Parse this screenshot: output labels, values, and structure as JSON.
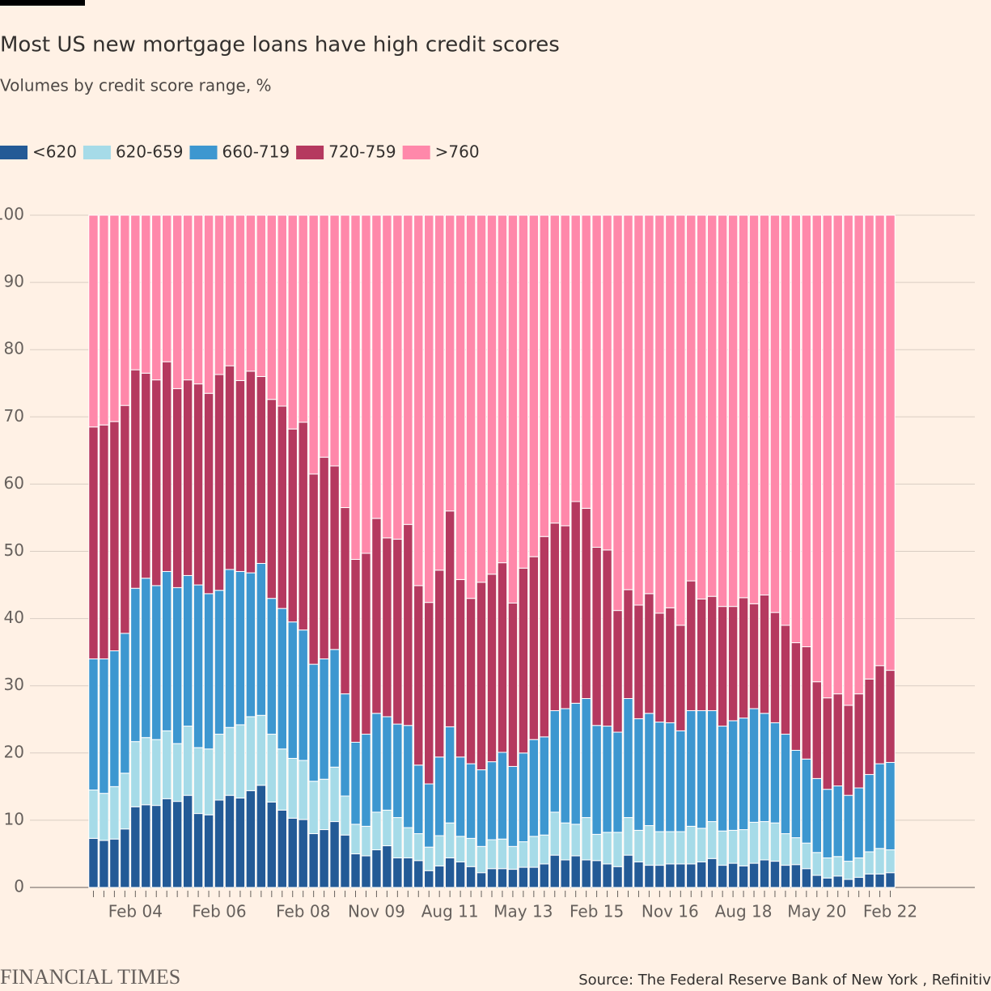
{
  "chart_data": {
    "type": "stacked-bar",
    "title": "Most US new mortgage loans have high credit scores",
    "subtitle": "Volumes by credit score range, %",
    "source": "Source: The Federal Reserve Bank of New York , Refinitiv",
    "brand": "FINANCIAL TIMES",
    "categories": [
      null,
      null,
      null,
      null,
      "Feb 04",
      null,
      null,
      null,
      null,
      null,
      null,
      null,
      "Feb 06",
      null,
      null,
      null,
      null,
      null,
      null,
      null,
      "Feb 08",
      null,
      null,
      null,
      null,
      null,
      null,
      "Nov 09",
      null,
      null,
      null,
      null,
      null,
      null,
      "Aug 11",
      null,
      null,
      null,
      null,
      null,
      null,
      "May 13",
      null,
      null,
      null,
      null,
      null,
      null,
      "Feb 15",
      null,
      null,
      null,
      null,
      null,
      null,
      "Nov 16",
      null,
      null,
      null,
      null,
      null,
      null,
      "Aug 18",
      null,
      null,
      null,
      null,
      null,
      null,
      "May 20",
      null,
      null,
      null,
      null,
      null,
      null,
      "Feb 22"
    ],
    "series": [
      {
        "name": "<620",
        "color": "#235a96",
        "values": [
          7.3,
          7,
          7.2,
          8.7,
          12,
          12.3,
          12.2,
          13.2,
          12.8,
          13.7,
          11,
          10.8,
          13,
          13.7,
          13.3,
          14.4,
          15.2,
          12.7,
          11.5,
          10.3,
          10.1,
          8,
          8.6,
          9.8,
          7.8,
          5,
          4.7,
          5.6,
          6.2,
          4.4,
          4.4,
          4,
          2.5,
          3.2,
          4.4,
          3.8,
          3.1,
          2.2,
          2.8,
          2.8,
          2.7,
          3,
          3,
          3.5,
          4.8,
          4.1,
          4.7,
          4.1,
          4,
          3.5,
          3.1,
          4.8,
          3.8,
          3.3,
          3.3,
          3.5,
          3.5,
          3.5,
          3.8,
          4.3,
          3.3,
          3.6,
          3.2,
          3.6,
          4.1,
          3.9,
          3.3,
          3.4,
          2.8,
          1.8,
          1.4,
          1.7,
          1.2,
          1.5,
          2,
          2,
          2.2
        ]
      },
      {
        "name": "620-659",
        "color": "#a6dbe8",
        "values": [
          7.2,
          7,
          7.8,
          8.3,
          9.7,
          10,
          9.8,
          10.1,
          8.6,
          10.3,
          9.8,
          9.8,
          9.8,
          10.1,
          10.9,
          11,
          10.4,
          10.1,
          9.1,
          8.9,
          8.8,
          7.8,
          7.5,
          8.1,
          5.8,
          4.4,
          4.4,
          5.6,
          5.3,
          6,
          4.5,
          4,
          3.5,
          4.5,
          5.2,
          3.8,
          4.2,
          3.9,
          4.3,
          4.4,
          3.4,
          3.8,
          4.6,
          4.3,
          6.4,
          5.5,
          4.7,
          6.3,
          3.9,
          4.7,
          5.1,
          5.6,
          4.7,
          5.9,
          5,
          4.8,
          4.8,
          5.6,
          5,
          5.5,
          5.1,
          4.9,
          5.4,
          6.1,
          5.7,
          5.7,
          4.7,
          4,
          3.8,
          3.4,
          3,
          2.9,
          2.7,
          2.9,
          3.3,
          3.8,
          3.4
        ]
      },
      {
        "name": "660-719",
        "color": "#3d97d0",
        "values": [
          19.5,
          20,
          20.2,
          20.8,
          22.8,
          23.7,
          22.9,
          23.7,
          23.2,
          22.4,
          24.2,
          23.1,
          21.4,
          23.5,
          22.8,
          21.4,
          22.6,
          20.2,
          20.9,
          20.3,
          19.4,
          17.4,
          17.9,
          17.5,
          15.2,
          12.2,
          13.7,
          14.7,
          13.9,
          13.9,
          15.2,
          10.2,
          9.4,
          11.7,
          14.3,
          11.8,
          11.1,
          11.4,
          11.6,
          12.9,
          11.9,
          13.2,
          14.4,
          14.6,
          15.1,
          17,
          18,
          17.7,
          16.2,
          15.8,
          14.9,
          17.7,
          16.6,
          16.7,
          16.3,
          16.2,
          15,
          17.2,
          17.5,
          16.5,
          15.6,
          16.3,
          16.6,
          16.9,
          16.1,
          14.9,
          14.8,
          13,
          12.5,
          11,
          10.2,
          10.5,
          9.8,
          10.4,
          11.5,
          12.6,
          13
        ]
      },
      {
        "name": "720-759",
        "color": "#b5395f",
        "values": [
          34.5,
          34.8,
          34.1,
          33.9,
          32.5,
          30.5,
          30.6,
          31.2,
          29.6,
          29.1,
          29.9,
          29.8,
          32.1,
          30.3,
          28.4,
          30,
          27.8,
          29.6,
          30.1,
          28.7,
          30.9,
          28.3,
          30,
          27.3,
          27.7,
          27.2,
          26.9,
          29,
          26.6,
          27.5,
          29.9,
          26.7,
          27,
          27.8,
          32.1,
          26.4,
          24.6,
          27.9,
          27.9,
          28.2,
          24.3,
          27.5,
          27.2,
          29.8,
          27.9,
          27.2,
          30,
          28.3,
          26.5,
          26.2,
          18.1,
          16.2,
          16.9,
          17.8,
          16.2,
          17.1,
          15.7,
          19.3,
          16.6,
          17,
          17.8,
          17,
          17.9,
          15.6,
          17.6,
          16.4,
          16.2,
          16,
          16.7,
          14.4,
          13.6,
          13.7,
          13.4,
          14,
          14.2,
          14.6,
          13.7
        ]
      },
      {
        "name": ">760",
        "color": "#ff88aa",
        "values": [
          31.5,
          31.2,
          30.7,
          28.3,
          23,
          23.5,
          24.5,
          21.8,
          25.8,
          24.5,
          25.1,
          26.5,
          23.7,
          22.4,
          24.6,
          23.2,
          24,
          27.4,
          28.4,
          31.8,
          30.8,
          38.5,
          36,
          37.3,
          43.5,
          51.2,
          50.3,
          45.1,
          48,
          48.2,
          46,
          55.1,
          57.6,
          52.8,
          44,
          54.2,
          57,
          54.6,
          53.4,
          51.7,
          57.7,
          52.5,
          50.8,
          47.8,
          45.8,
          46.2,
          42.6,
          43.6,
          49.4,
          49.8,
          58.8,
          55.7,
          58,
          56.3,
          59.2,
          58.4,
          61,
          54.4,
          57.1,
          56.7,
          58.2,
          58.2,
          56.9,
          57.8,
          56.5,
          59.1,
          61,
          63.6,
          64.2,
          69.4,
          71.8,
          71.2,
          72.9,
          71.2,
          69,
          67,
          67.7
        ]
      }
    ],
    "ylim": [
      0,
      100
    ],
    "yticks": [
      0,
      10,
      20,
      30,
      40,
      50,
      60,
      70,
      80,
      90,
      100
    ],
    "grid": true
  }
}
